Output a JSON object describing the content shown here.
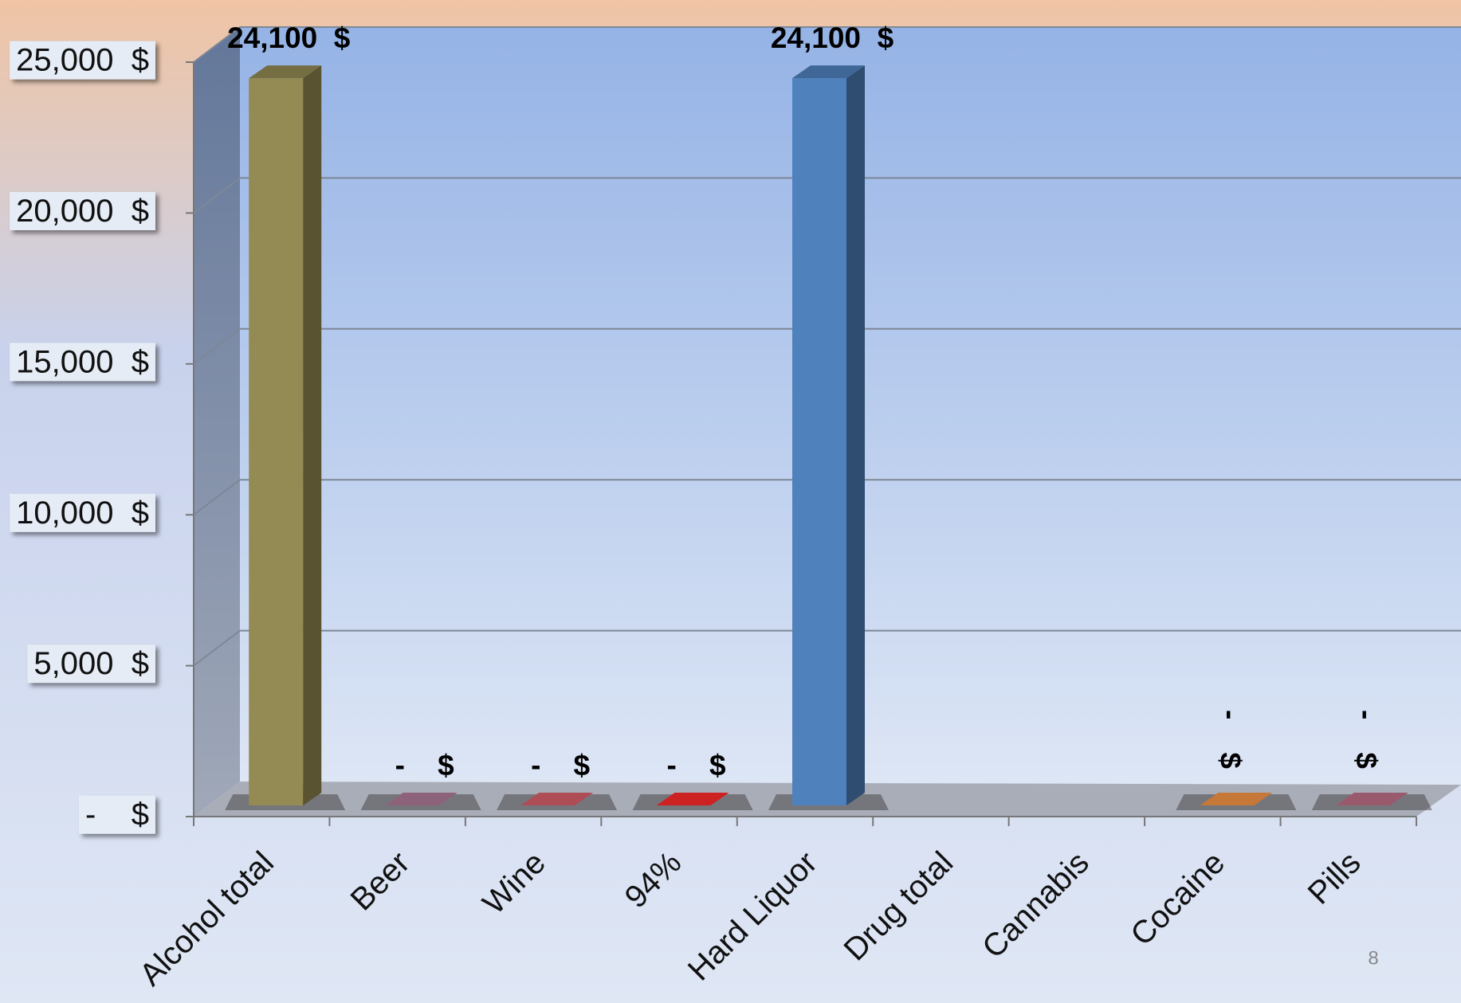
{
  "chart_data": {
    "type": "bar3d",
    "categories": [
      "Alcohol total",
      "Beer",
      "Wine",
      "94%",
      "Hard Liquor",
      "Drug total",
      "Cannabis",
      "Cocaine",
      "Pills"
    ],
    "values": [
      24100,
      0,
      0,
      0,
      24100,
      null,
      null,
      0,
      0
    ],
    "value_labels": [
      "24,100  $",
      "-    $",
      "-    $",
      "-    $",
      "24,100  $",
      null,
      null,
      "-    $",
      "-    $"
    ],
    "colors": [
      "#948a54",
      "#b07a9a",
      "#d9606a",
      "#ff2a2a",
      "#4f81bd",
      "#8064a2",
      "#9bbb59",
      "#f79646",
      "#c0708a"
    ],
    "ylim": [
      0,
      25000
    ],
    "yticks": [
      {
        "value": 0,
        "label": "-    $"
      },
      {
        "value": 5000,
        "label": "5,000  $"
      },
      {
        "value": 10000,
        "label": "10,000  $"
      },
      {
        "value": 15000,
        "label": "15,000  $"
      },
      {
        "value": 20000,
        "label": "20,000  $"
      },
      {
        "value": 25000,
        "label": "25,000  $"
      }
    ],
    "grid": true,
    "page_number": "8"
  }
}
